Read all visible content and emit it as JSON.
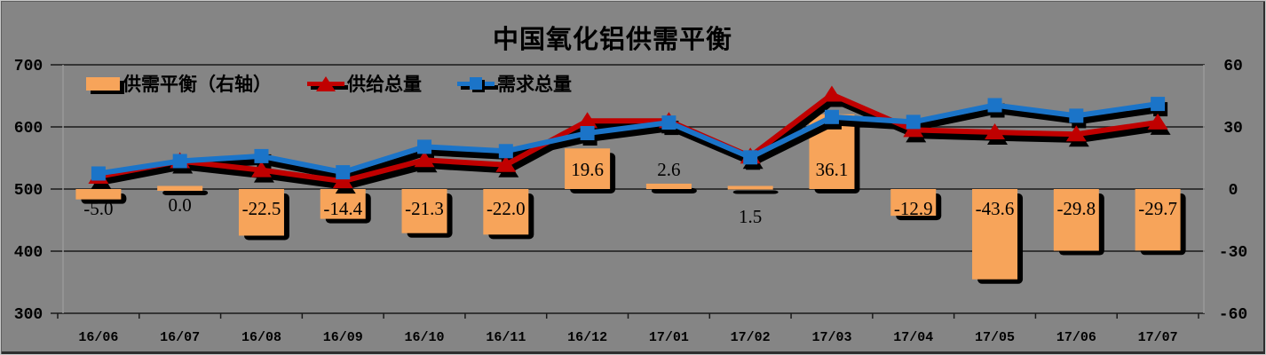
{
  "title": "中国氧化铝供需平衡",
  "legend": [
    {
      "label": "供需平衡（右轴）",
      "type": "bar",
      "color": "#F7A45A"
    },
    {
      "label": "供给总量",
      "type": "line",
      "marker": "triangle",
      "color": "#C00000"
    },
    {
      "label": "需求总量",
      "type": "line",
      "marker": "square",
      "color": "#1B74C8"
    }
  ],
  "axes": {
    "left": {
      "ticks": [
        "700",
        "600",
        "500",
        "400",
        "300"
      ],
      "values": [
        700,
        600,
        500,
        400,
        300
      ]
    },
    "right": {
      "ticks": [
        "60",
        "30",
        "0",
        "-30",
        "-60"
      ],
      "values": [
        60,
        30,
        0,
        -30,
        -60
      ]
    }
  },
  "colors": {
    "background": "#858585",
    "gridline": "#1a1a1a",
    "axis_wall": "#9a9a9a",
    "shadow": "#000000",
    "bar": "#F7A45A",
    "supply_line": "#C00000",
    "demand_line": "#1B74C8",
    "text": "#000000"
  },
  "chart_data": {
    "type": "combo-bar-line",
    "title": "中国氧化铝供需平衡",
    "categories": [
      "16/06",
      "16/07",
      "16/08",
      "16/09",
      "16/10",
      "16/11",
      "16/12",
      "17/01",
      "17/02",
      "17/03",
      "17/04",
      "17/05",
      "17/06",
      "17/07"
    ],
    "series": [
      {
        "name": "供需平衡（右轴）",
        "type": "bar",
        "axis": "right",
        "color": "#F7A45A",
        "values": [
          -5.0,
          0.0,
          -22.5,
          -14.4,
          -21.3,
          -22.0,
          19.6,
          2.6,
          1.5,
          36.1,
          -12.9,
          -43.6,
          -29.8,
          -29.7
        ],
        "labels": [
          "-5.0",
          "0.0",
          "-22.5",
          "-14.4",
          "-21.3",
          "-22.0",
          "19.6",
          "2.6",
          "1.5",
          "36.1",
          "-12.9",
          "-43.6",
          "-29.8",
          "-29.7"
        ]
      },
      {
        "name": "供给总量",
        "type": "line",
        "marker": "triangle",
        "axis": "left",
        "color": "#C00000",
        "values": [
          520,
          545,
          530.5,
          512.6,
          546.7,
          539,
          609.6,
          609.6,
          552.5,
          652.1,
          595.1,
          591.4,
          588.2,
          607.3
        ]
      },
      {
        "name": "需求总量",
        "type": "line",
        "marker": "square",
        "axis": "left",
        "color": "#1B74C8",
        "values": [
          525,
          545,
          553,
          527,
          568,
          561,
          590,
          607,
          551,
          616,
          608,
          635,
          618,
          637
        ]
      }
    ],
    "left_ylim": [
      300,
      700
    ],
    "right_ylim": [
      -60,
      60
    ],
    "grid": true,
    "legend_position": "top-left"
  }
}
